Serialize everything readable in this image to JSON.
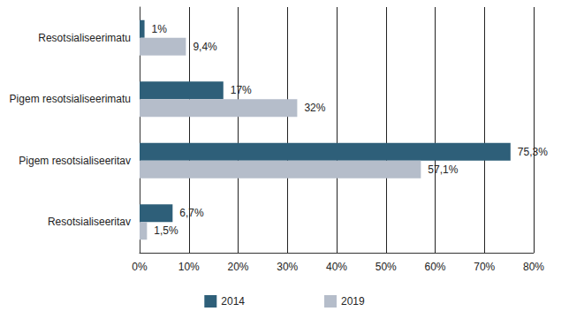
{
  "chart_data": {
    "type": "bar",
    "orientation": "horizontal",
    "categories": [
      "Resotsialiseerimatu",
      "Pigem resotsialiseerimatu",
      "Pigem resotsialiseeritav",
      "Resotsialiseeritav"
    ],
    "series": [
      {
        "name": "2014",
        "color": "#2e5f79",
        "values": [
          1,
          17,
          75.3,
          6.7
        ],
        "value_labels": [
          "1%",
          "17%",
          "75,3%",
          "6,7%"
        ]
      },
      {
        "name": "2019",
        "color": "#b5bdca",
        "values": [
          9.4,
          32,
          57.1,
          1.5
        ],
        "value_labels": [
          "9,4%",
          "32%",
          "57,1%",
          "1,5%"
        ]
      }
    ],
    "xlim": [
      0,
      80
    ],
    "xticks": [
      {
        "value": 0,
        "label": "0%"
      },
      {
        "value": 10,
        "label": "10%"
      },
      {
        "value": 20,
        "label": "20%"
      },
      {
        "value": 30,
        "label": "30%"
      },
      {
        "value": 40,
        "label": "40%"
      },
      {
        "value": 50,
        "label": "50%"
      },
      {
        "value": 60,
        "label": "60%"
      },
      {
        "value": 70,
        "label": "70%"
      },
      {
        "value": 80,
        "label": "80%"
      }
    ],
    "grid": true,
    "legend": "bottom",
    "data_labels": true
  }
}
